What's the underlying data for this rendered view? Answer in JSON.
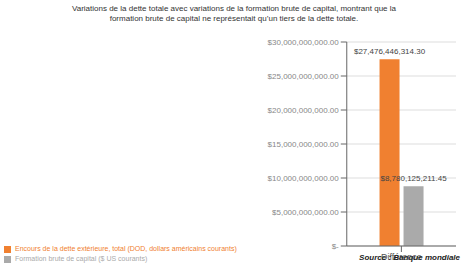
{
  "chart_data": {
    "type": "bar",
    "title": "Variations de la dette totale avec variations de la formation brute de capital, montrant que la\nformation brute de capital ne représentait qu’un tiers de la dette totale.",
    "categories": [
      "Différence"
    ],
    "series": [
      {
        "name": "Encours de la dette extérieure, total (DOD, dollars américains courants)",
        "color": "#F08030",
        "values": [
          27476446314.3
        ],
        "value_labels": [
          "$27,476,446,314.30"
        ]
      },
      {
        "name": "Formation brute de capital ($ US courants)",
        "color": "#AAAAAA",
        "values": [
          8780125211.45
        ],
        "value_labels": [
          "$8,780,125,211.45"
        ]
      }
    ],
    "ylim": [
      0,
      30000000000
    ],
    "yticks": [
      {
        "value": 0,
        "label": "$-"
      },
      {
        "value": 5000000000,
        "label": "$5,000,000,000.00"
      },
      {
        "value": 10000000000,
        "label": "$10,000,000,000.00"
      },
      {
        "value": 15000000000,
        "label": "$15,000,000,000.00"
      },
      {
        "value": 20000000000,
        "label": "$20,000,000,000.00"
      },
      {
        "value": 25000000000,
        "label": "$25,000,000,000.00"
      },
      {
        "value": 30000000000,
        "label": "$30,000,000,000.00"
      }
    ],
    "grid": true,
    "legend": "lower left",
    "data_labels": true,
    "annotations": [
      "Source : Banque mondiale"
    ]
  }
}
